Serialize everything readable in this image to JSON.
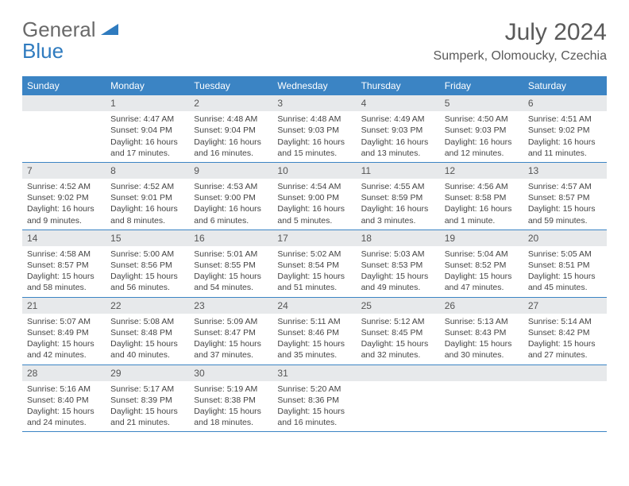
{
  "logo": {
    "word1": "General",
    "word2": "Blue"
  },
  "colors": {
    "header_bg": "#3b84c4",
    "daynum_bg": "#e7e9eb",
    "accent_blue": "#2f7bbf",
    "text_gray": "#5a5a5a",
    "border_blue": "#3b84c4"
  },
  "title": "July 2024",
  "location": "Sumperk, Olomoucky, Czechia",
  "weekdays": [
    "Sunday",
    "Monday",
    "Tuesday",
    "Wednesday",
    "Thursday",
    "Friday",
    "Saturday"
  ],
  "days": [
    {
      "num": "",
      "sunrise": "",
      "sunset": "",
      "daylight": ""
    },
    {
      "num": "1",
      "sunrise": "Sunrise: 4:47 AM",
      "sunset": "Sunset: 9:04 PM",
      "daylight": "Daylight: 16 hours and 17 minutes."
    },
    {
      "num": "2",
      "sunrise": "Sunrise: 4:48 AM",
      "sunset": "Sunset: 9:04 PM",
      "daylight": "Daylight: 16 hours and 16 minutes."
    },
    {
      "num": "3",
      "sunrise": "Sunrise: 4:48 AM",
      "sunset": "Sunset: 9:03 PM",
      "daylight": "Daylight: 16 hours and 15 minutes."
    },
    {
      "num": "4",
      "sunrise": "Sunrise: 4:49 AM",
      "sunset": "Sunset: 9:03 PM",
      "daylight": "Daylight: 16 hours and 13 minutes."
    },
    {
      "num": "5",
      "sunrise": "Sunrise: 4:50 AM",
      "sunset": "Sunset: 9:03 PM",
      "daylight": "Daylight: 16 hours and 12 minutes."
    },
    {
      "num": "6",
      "sunrise": "Sunrise: 4:51 AM",
      "sunset": "Sunset: 9:02 PM",
      "daylight": "Daylight: 16 hours and 11 minutes."
    },
    {
      "num": "7",
      "sunrise": "Sunrise: 4:52 AM",
      "sunset": "Sunset: 9:02 PM",
      "daylight": "Daylight: 16 hours and 9 minutes."
    },
    {
      "num": "8",
      "sunrise": "Sunrise: 4:52 AM",
      "sunset": "Sunset: 9:01 PM",
      "daylight": "Daylight: 16 hours and 8 minutes."
    },
    {
      "num": "9",
      "sunrise": "Sunrise: 4:53 AM",
      "sunset": "Sunset: 9:00 PM",
      "daylight": "Daylight: 16 hours and 6 minutes."
    },
    {
      "num": "10",
      "sunrise": "Sunrise: 4:54 AM",
      "sunset": "Sunset: 9:00 PM",
      "daylight": "Daylight: 16 hours and 5 minutes."
    },
    {
      "num": "11",
      "sunrise": "Sunrise: 4:55 AM",
      "sunset": "Sunset: 8:59 PM",
      "daylight": "Daylight: 16 hours and 3 minutes."
    },
    {
      "num": "12",
      "sunrise": "Sunrise: 4:56 AM",
      "sunset": "Sunset: 8:58 PM",
      "daylight": "Daylight: 16 hours and 1 minute."
    },
    {
      "num": "13",
      "sunrise": "Sunrise: 4:57 AM",
      "sunset": "Sunset: 8:57 PM",
      "daylight": "Daylight: 15 hours and 59 minutes."
    },
    {
      "num": "14",
      "sunrise": "Sunrise: 4:58 AM",
      "sunset": "Sunset: 8:57 PM",
      "daylight": "Daylight: 15 hours and 58 minutes."
    },
    {
      "num": "15",
      "sunrise": "Sunrise: 5:00 AM",
      "sunset": "Sunset: 8:56 PM",
      "daylight": "Daylight: 15 hours and 56 minutes."
    },
    {
      "num": "16",
      "sunrise": "Sunrise: 5:01 AM",
      "sunset": "Sunset: 8:55 PM",
      "daylight": "Daylight: 15 hours and 54 minutes."
    },
    {
      "num": "17",
      "sunrise": "Sunrise: 5:02 AM",
      "sunset": "Sunset: 8:54 PM",
      "daylight": "Daylight: 15 hours and 51 minutes."
    },
    {
      "num": "18",
      "sunrise": "Sunrise: 5:03 AM",
      "sunset": "Sunset: 8:53 PM",
      "daylight": "Daylight: 15 hours and 49 minutes."
    },
    {
      "num": "19",
      "sunrise": "Sunrise: 5:04 AM",
      "sunset": "Sunset: 8:52 PM",
      "daylight": "Daylight: 15 hours and 47 minutes."
    },
    {
      "num": "20",
      "sunrise": "Sunrise: 5:05 AM",
      "sunset": "Sunset: 8:51 PM",
      "daylight": "Daylight: 15 hours and 45 minutes."
    },
    {
      "num": "21",
      "sunrise": "Sunrise: 5:07 AM",
      "sunset": "Sunset: 8:49 PM",
      "daylight": "Daylight: 15 hours and 42 minutes."
    },
    {
      "num": "22",
      "sunrise": "Sunrise: 5:08 AM",
      "sunset": "Sunset: 8:48 PM",
      "daylight": "Daylight: 15 hours and 40 minutes."
    },
    {
      "num": "23",
      "sunrise": "Sunrise: 5:09 AM",
      "sunset": "Sunset: 8:47 PM",
      "daylight": "Daylight: 15 hours and 37 minutes."
    },
    {
      "num": "24",
      "sunrise": "Sunrise: 5:11 AM",
      "sunset": "Sunset: 8:46 PM",
      "daylight": "Daylight: 15 hours and 35 minutes."
    },
    {
      "num": "25",
      "sunrise": "Sunrise: 5:12 AM",
      "sunset": "Sunset: 8:45 PM",
      "daylight": "Daylight: 15 hours and 32 minutes."
    },
    {
      "num": "26",
      "sunrise": "Sunrise: 5:13 AM",
      "sunset": "Sunset: 8:43 PM",
      "daylight": "Daylight: 15 hours and 30 minutes."
    },
    {
      "num": "27",
      "sunrise": "Sunrise: 5:14 AM",
      "sunset": "Sunset: 8:42 PM",
      "daylight": "Daylight: 15 hours and 27 minutes."
    },
    {
      "num": "28",
      "sunrise": "Sunrise: 5:16 AM",
      "sunset": "Sunset: 8:40 PM",
      "daylight": "Daylight: 15 hours and 24 minutes."
    },
    {
      "num": "29",
      "sunrise": "Sunrise: 5:17 AM",
      "sunset": "Sunset: 8:39 PM",
      "daylight": "Daylight: 15 hours and 21 minutes."
    },
    {
      "num": "30",
      "sunrise": "Sunrise: 5:19 AM",
      "sunset": "Sunset: 8:38 PM",
      "daylight": "Daylight: 15 hours and 18 minutes."
    },
    {
      "num": "31",
      "sunrise": "Sunrise: 5:20 AM",
      "sunset": "Sunset: 8:36 PM",
      "daylight": "Daylight: 15 hours and 16 minutes."
    },
    {
      "num": "",
      "sunrise": "",
      "sunset": "",
      "daylight": ""
    },
    {
      "num": "",
      "sunrise": "",
      "sunset": "",
      "daylight": ""
    },
    {
      "num": "",
      "sunrise": "",
      "sunset": "",
      "daylight": ""
    }
  ]
}
